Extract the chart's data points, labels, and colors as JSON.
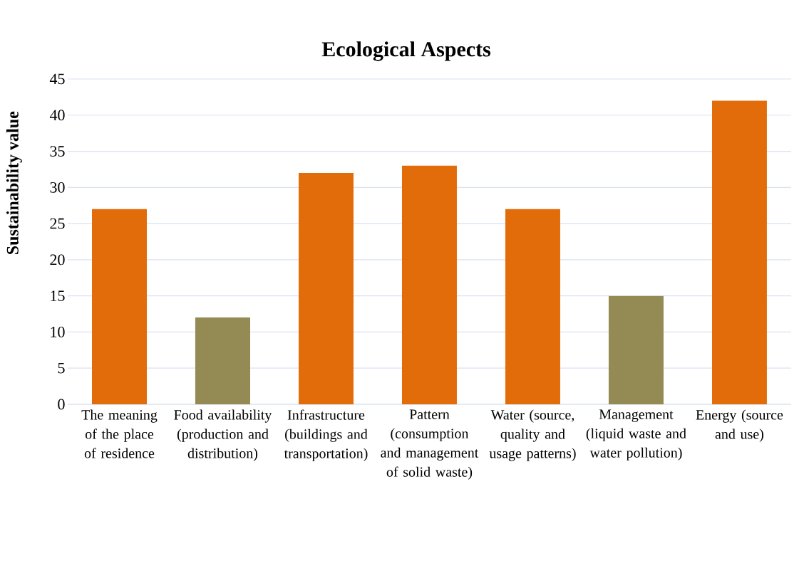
{
  "chart_data": {
    "type": "bar",
    "title": "Ecological Aspects",
    "ylabel": "Sustainability value",
    "categories": [
      "The meaning of the place of residence",
      "Food availability (production and distribution)",
      "Infrastructure (buildings and transportation)",
      "Pattern (consumption and management of solid waste)",
      "Water (source, quality and usage patterns)",
      "Management (liquid waste and water pollution)",
      "Energy (source and use)"
    ],
    "values": [
      27,
      12,
      32,
      33,
      27,
      15,
      42
    ],
    "colors": [
      "#e36c0a",
      "#948a54",
      "#e36c0a",
      "#e36c0a",
      "#e36c0a",
      "#948a54",
      "#e36c0a"
    ],
    "ylim": [
      0,
      45
    ],
    "yticks": [
      0,
      5,
      10,
      15,
      20,
      25,
      30,
      35,
      40,
      45
    ],
    "grid": "y"
  }
}
